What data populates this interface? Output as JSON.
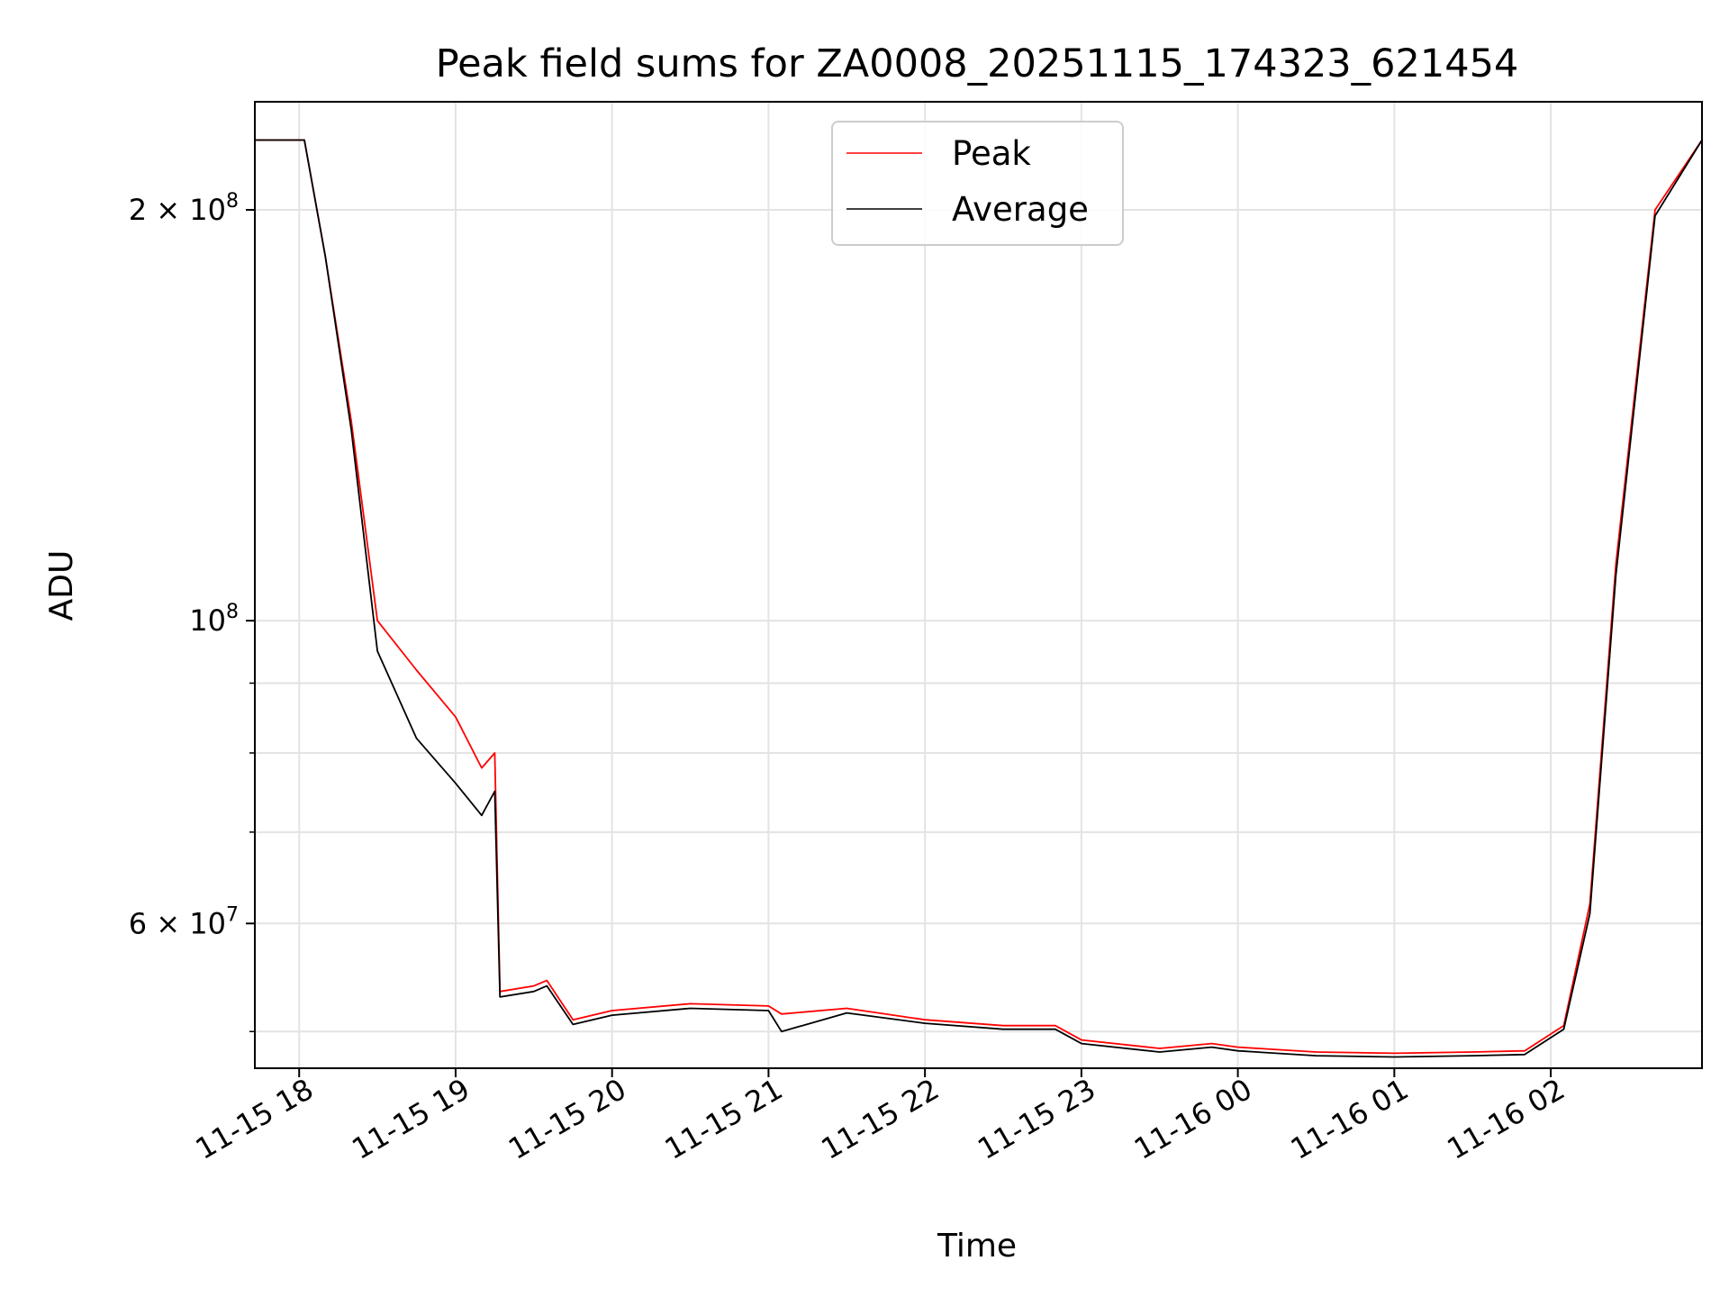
{
  "chart_data": {
    "type": "line",
    "title": "Peak field sums for ZA0008_20251115_174323_621454",
    "xlabel": "Time",
    "ylabel": "ADU",
    "yscale": "log",
    "xlim": [
      "2025-11-15 17:43",
      "2025-11-16 02:58"
    ],
    "ylim": [
      47000000,
      240000000
    ],
    "grid": true,
    "legend": "upper center",
    "x_ticks": [
      "11-15 18",
      "11-15 19",
      "11-15 20",
      "11-15 21",
      "11-15 22",
      "11-15 23",
      "11-16 00",
      "11-16 01",
      "11-16 02"
    ],
    "y_ticks": [
      "2 × 10^8",
      "10^8",
      "6 × 10^7"
    ],
    "x": [
      "2025-11-15 17:43",
      "2025-11-15 18:02",
      "2025-11-15 18:10",
      "2025-11-15 18:20",
      "2025-11-15 18:30",
      "2025-11-15 18:45",
      "2025-11-15 19:00",
      "2025-11-15 19:10",
      "2025-11-15 19:15",
      "2025-11-15 19:17",
      "2025-11-15 19:30",
      "2025-11-15 19:35",
      "2025-11-15 19:45",
      "2025-11-15 20:00",
      "2025-11-15 20:30",
      "2025-11-15 21:00",
      "2025-11-15 21:05",
      "2025-11-15 21:30",
      "2025-11-15 22:00",
      "2025-11-15 22:30",
      "2025-11-15 22:50",
      "2025-11-15 23:00",
      "2025-11-15 23:30",
      "2025-11-15 23:50",
      "2025-11-16 00:00",
      "2025-11-16 00:30",
      "2025-11-16 01:00",
      "2025-11-16 01:30",
      "2025-11-16 01:50",
      "2025-11-16 02:05",
      "2025-11-16 02:15",
      "2025-11-16 02:25",
      "2025-11-16 02:40",
      "2025-11-16 02:58"
    ],
    "series": [
      {
        "name": "Peak",
        "color": "#ff0000",
        "values": [
          225000000,
          225000000,
          185000000,
          140000000,
          100000000,
          92000000,
          85000000,
          78000000,
          80000000,
          53500000,
          54000000,
          54500000,
          51000000,
          51800000,
          52400000,
          52200000,
          51500000,
          52000000,
          51000000,
          50500000,
          50500000,
          49300000,
          48600000,
          49000000,
          48700000,
          48300000,
          48200000,
          48300000,
          48400000,
          50500000,
          62000000,
          110000000,
          200000000,
          225000000
        ]
      },
      {
        "name": "Average",
        "color": "#000000",
        "values": [
          225000000,
          225000000,
          185000000,
          138000000,
          95000000,
          82000000,
          76000000,
          72000000,
          75000000,
          53000000,
          53500000,
          54000000,
          50600000,
          51400000,
          52000000,
          51800000,
          50000000,
          51600000,
          50700000,
          50200000,
          50200000,
          49000000,
          48300000,
          48700000,
          48400000,
          48000000,
          47900000,
          48000000,
          48100000,
          50200000,
          61000000,
          108000000,
          198000000,
          225000000
        ]
      }
    ]
  }
}
